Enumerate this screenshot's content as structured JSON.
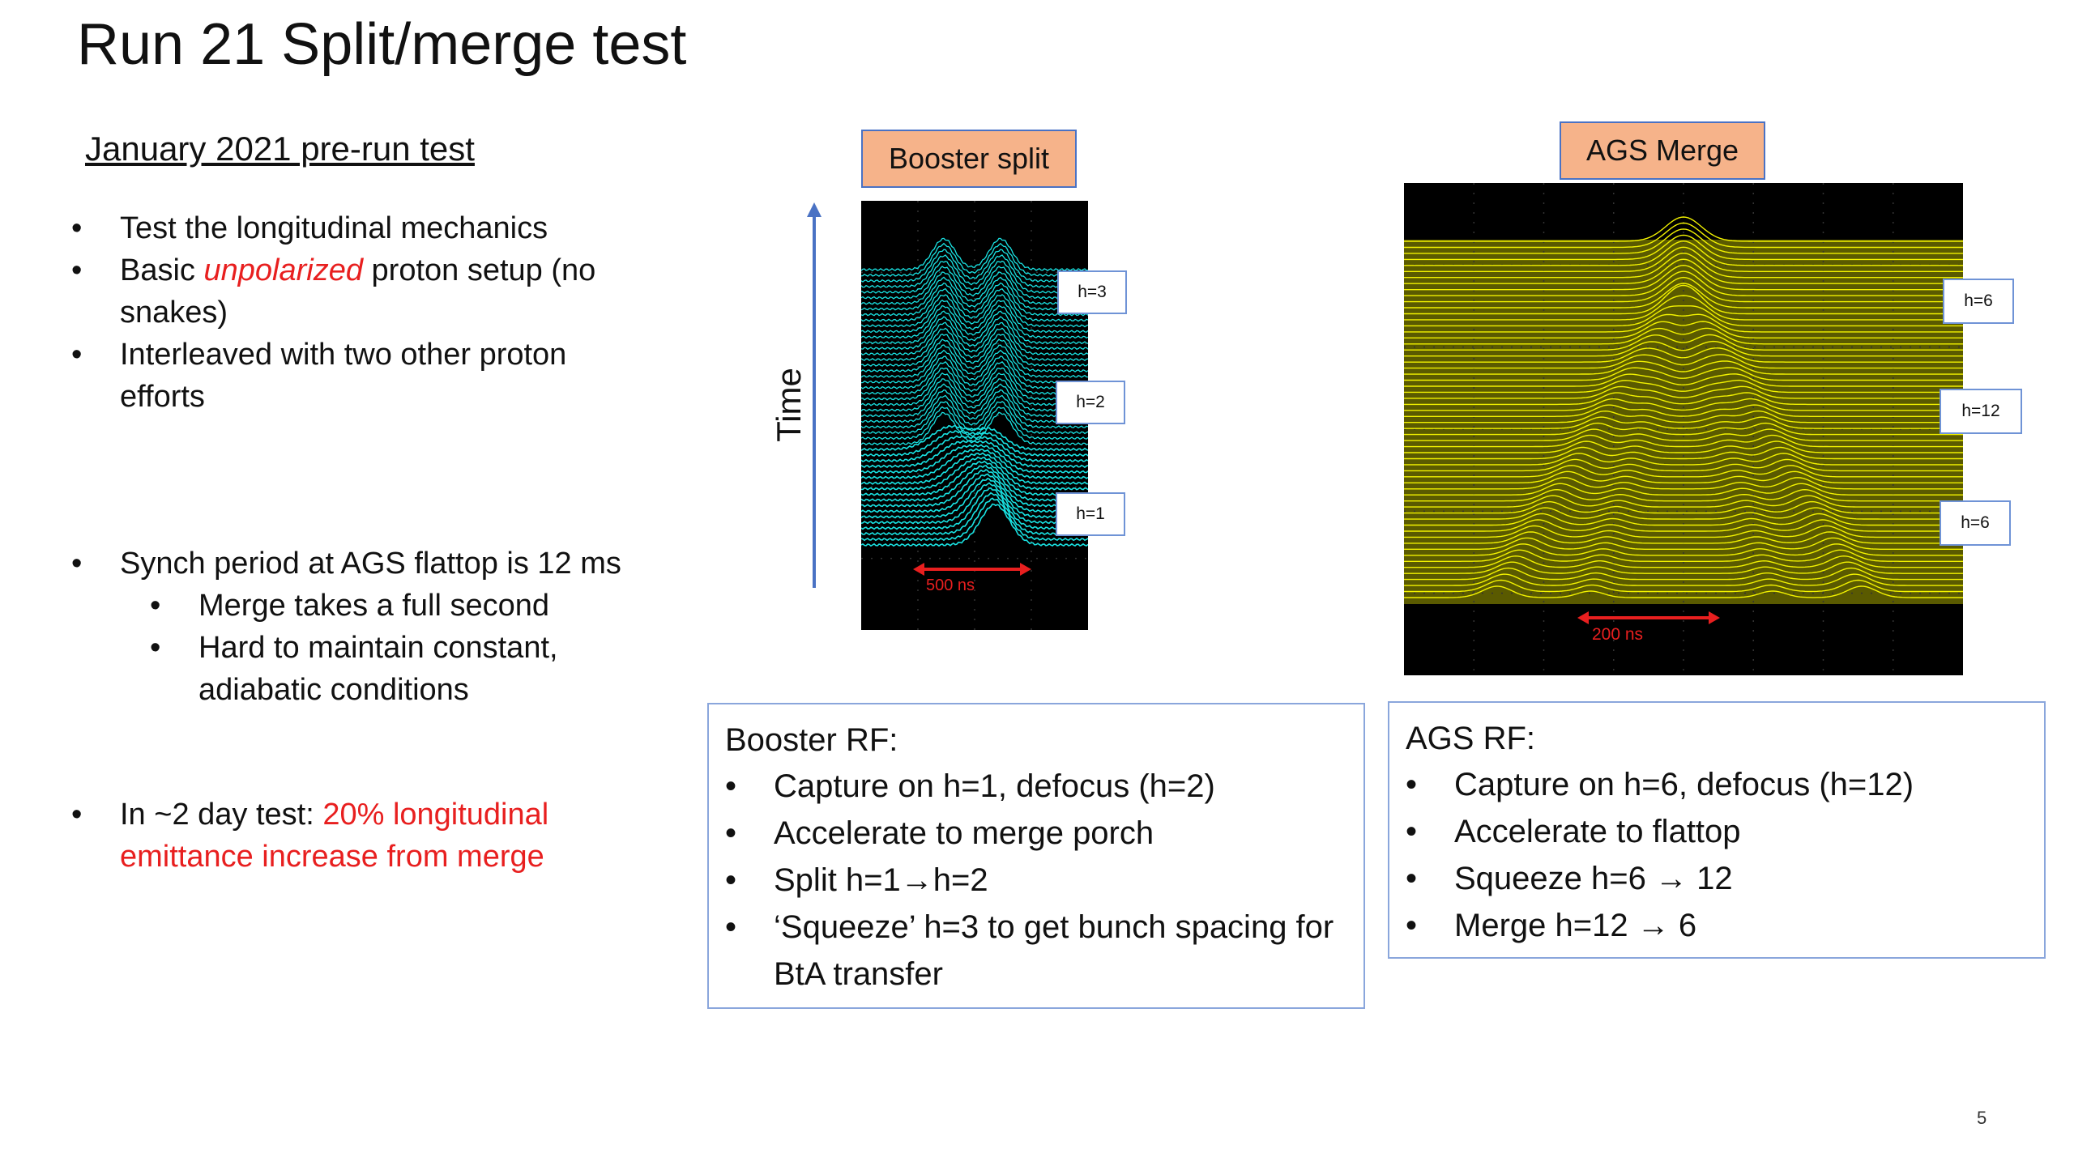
{
  "slide": {
    "title": "Run 21 Split/merge test",
    "subtitle": "January 2021 pre-run test",
    "page_number": "5"
  },
  "left_bullets": {
    "b1": "Test the longitudinal mechanics",
    "b2_pre": "Basic ",
    "b2_em": "unpolarized",
    "b2_post": " proton setup (no snakes)",
    "b3": "Interleaved with two other proton efforts",
    "b4": "Synch period at AGS flattop is 12 ms",
    "b4_sub1": "Merge takes a full second",
    "b4_sub2": "Hard to maintain constant, adiabatic conditions",
    "b5_pre": "In ~2 day test: ",
    "b5_red": "20% longitudinal emittance increase from merge",
    "bullet_char": "•"
  },
  "booster_plot": {
    "label": "Booster split",
    "axis_label": "Time",
    "tags": [
      "h=3",
      "h=2",
      "h=1"
    ],
    "scale_label": "500 ns",
    "trace_color": "#19e3e3"
  },
  "ags_plot": {
    "label": "AGS Merge",
    "tags": [
      "h=6",
      "h=12",
      "h=6"
    ],
    "scale_label": "200 ns",
    "trace_color": "#f2f200",
    "band_color": "#5a5a00"
  },
  "booster_rf": {
    "header": "Booster RF:",
    "items": [
      "Capture on h=1, defocus (h=2)",
      "Accelerate to merge porch",
      "Split h=1→h=2",
      "‘Squeeze’ h=3 to get bunch spacing for BtA transfer"
    ]
  },
  "ags_rf": {
    "header": "AGS RF:",
    "items": [
      "Capture on h=6, defocus (h=12)",
      "Accelerate to flattop",
      "Squeeze h=6 → 12",
      "Merge h=12 → 6"
    ]
  }
}
